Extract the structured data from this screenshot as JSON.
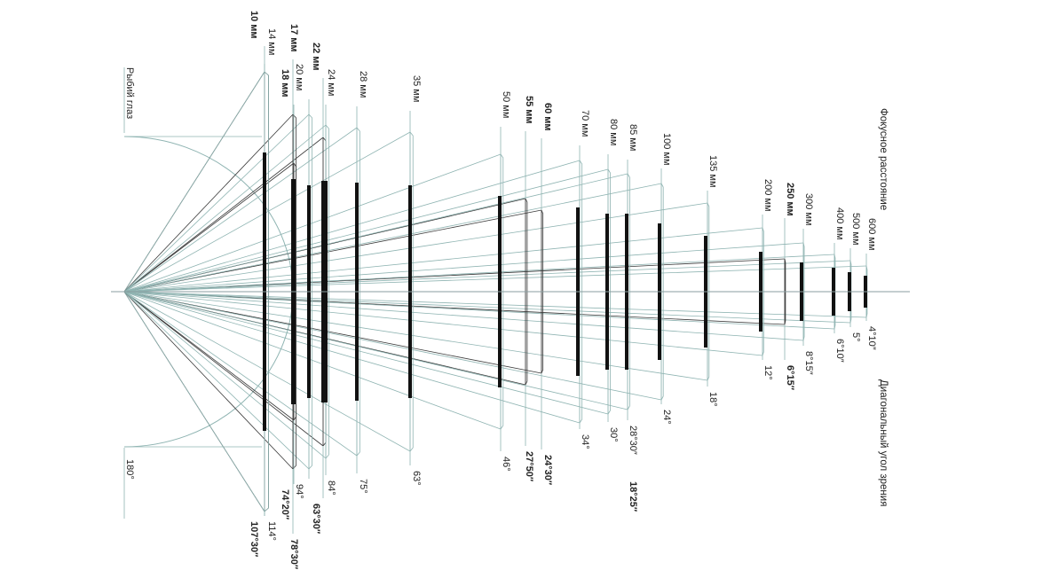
{
  "axis_titles": {
    "focal_length": "Фокусное расстояние",
    "diagonal_angle": "Диагональный угол зрения"
  },
  "fisheye": {
    "label": "Рыбий глаз",
    "angle": "180°"
  },
  "colors": {
    "teal": "#8fb4b2",
    "dark": "#3a3a3a",
    "bar": "#111111",
    "axis": "#8a9ea0"
  },
  "lenses": [
    {
      "focal": "10 мм",
      "angle": "107°30″",
      "bold": true
    },
    {
      "focal": "14 мм",
      "angle": "114°",
      "bold": false
    },
    {
      "focal": "17 мм",
      "angle": "78°30″",
      "bold": true
    },
    {
      "focal": "18 мм",
      "angle": "74°20″",
      "bold": true
    },
    {
      "focal": "20 мм",
      "angle": "94°",
      "bold": false
    },
    {
      "focal": "22 мм",
      "angle": "63°30″",
      "bold": true
    },
    {
      "focal": "24 мм",
      "angle": "84°",
      "bold": false
    },
    {
      "focal": "28 мм",
      "angle": "75°",
      "bold": false
    },
    {
      "focal": "35 мм",
      "angle": "63°",
      "bold": false
    },
    {
      "focal": "50 мм",
      "angle": "46°",
      "bold": false
    },
    {
      "focal": "55 мм",
      "angle": "27°50″",
      "bold": true
    },
    {
      "focal": "60 мм",
      "angle": "24°30″",
      "bold": true
    },
    {
      "focal": "70 мм",
      "angle": "34°",
      "bold": false
    },
    {
      "focal": "80 мм",
      "angle": "30°",
      "bold": false
    },
    {
      "focal": "85 мм",
      "angle": "28°30″",
      "bold": false
    },
    {
      "focal": "100 мм",
      "angle": "24°",
      "bold": false
    },
    {
      "focal": "135 мм",
      "angle": "18°",
      "bold": false
    },
    {
      "focal": "200 мм",
      "angle": "12°",
      "bold": false
    },
    {
      "focal": "250 мм",
      "angle": "6°15″",
      "bold": true
    },
    {
      "focal": "300 мм",
      "angle": "8°15″",
      "bold": false
    },
    {
      "focal": "400 мм",
      "angle": "6°10″",
      "bold": false
    },
    {
      "focal": "500 мм",
      "angle": "5°",
      "bold": false
    },
    {
      "focal": "600 мм",
      "angle": "4°10″",
      "bold": false
    }
  ],
  "special_angles": [
    {
      "angle": "18°25″",
      "bold": true
    }
  ]
}
